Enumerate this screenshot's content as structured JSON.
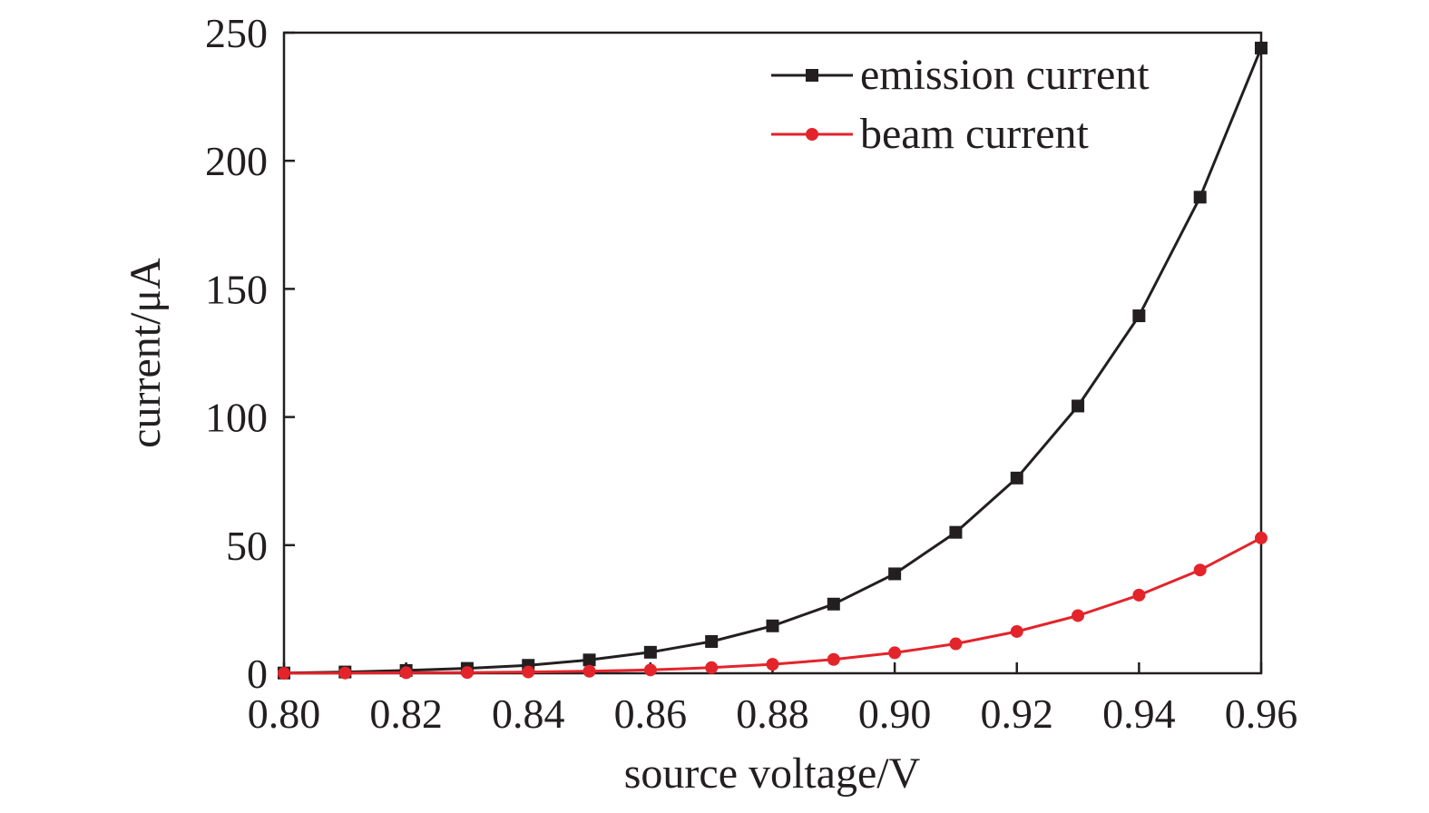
{
  "chart_data": {
    "type": "line",
    "title": "",
    "xlabel": "source voltage/V",
    "ylabel": "current/μA",
    "xlim": [
      0.8,
      0.96
    ],
    "ylim": [
      0,
      250
    ],
    "grid": false,
    "legend_position": "top-right",
    "x": [
      0.8,
      0.81,
      0.82,
      0.83,
      0.84,
      0.85,
      0.86,
      0.87,
      0.88,
      0.89,
      0.9,
      0.91,
      0.92,
      0.93,
      0.94,
      0.95,
      0.96
    ],
    "x_ticks": [
      "0.80",
      "0.82",
      "0.84",
      "0.86",
      "0.88",
      "0.90",
      "0.92",
      "0.94",
      "0.96"
    ],
    "y_ticks": [
      "0",
      "50",
      "100",
      "150",
      "200",
      "250"
    ],
    "series": [
      {
        "name": "emission current",
        "color": "#231f20",
        "marker": "square",
        "values": [
          0.1,
          0.5,
          1.1,
          1.9,
          3.1,
          5.2,
          8.2,
          12.4,
          18.5,
          27.0,
          38.8,
          55.0,
          76.2,
          104.3,
          139.5,
          185.8,
          244.0
        ]
      },
      {
        "name": "beam current",
        "color": "#e3242b",
        "marker": "circle",
        "values": [
          0.0,
          0.1,
          0.2,
          0.3,
          0.5,
          0.8,
          1.3,
          2.2,
          3.5,
          5.4,
          8.0,
          11.5,
          16.3,
          22.5,
          30.5,
          40.3,
          52.8
        ]
      }
    ]
  }
}
